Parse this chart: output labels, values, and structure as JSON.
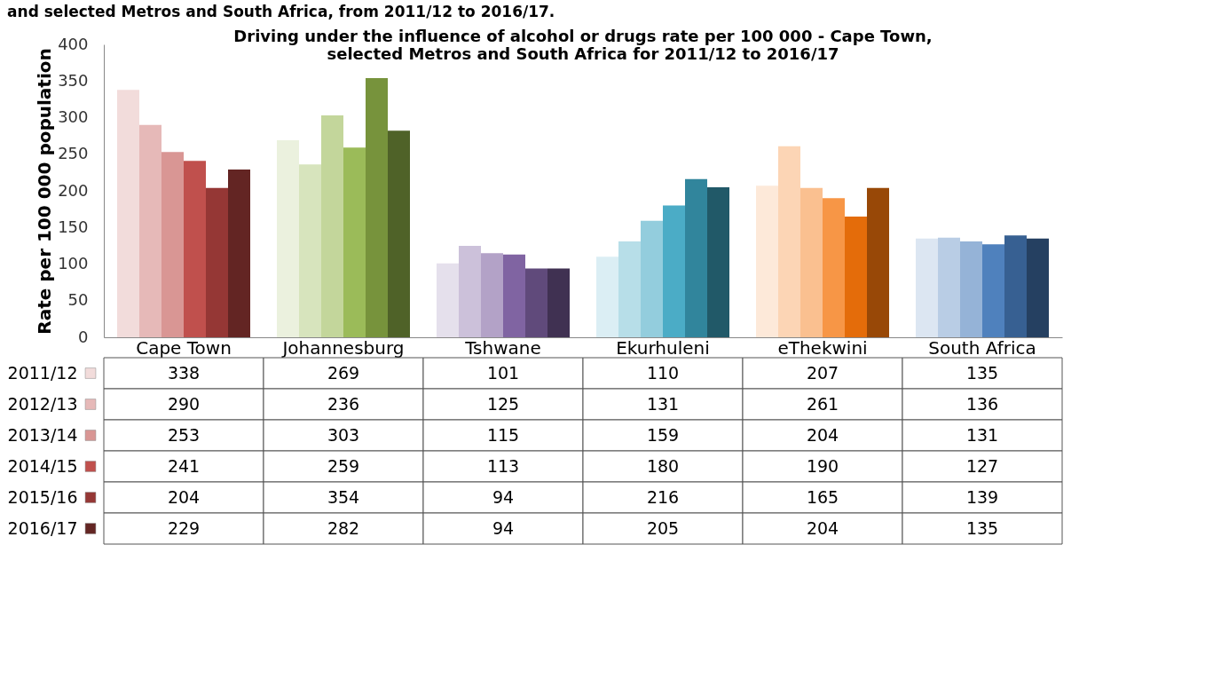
{
  "chart_data": {
    "type": "bar",
    "title": [
      "Driving under the influence of alcohol or drugs rate per 100 000 - Cape Town,",
      "selected Metros and South Africa for 2011/12 to 2016/17"
    ],
    "annotations": [
      "and selected Metros and South Africa, from 2011/12 to 2016/17."
    ],
    "ylabel": "Rate per 100 000 population",
    "categories": [
      "Cape Town",
      "Johannesburg",
      "Tshwane",
      "Ekurhuleni",
      "eThekwini",
      "South Africa"
    ],
    "series": [
      {
        "name": "2011/12",
        "values": [
          338,
          269,
          101,
          110,
          207,
          135
        ],
        "colors": [
          "#f2dcdb",
          "#ebf1de",
          "#e5e0ec",
          "#dbeef4",
          "#fde9d9",
          "#dce6f2"
        ]
      },
      {
        "name": "2012/13",
        "values": [
          290,
          236,
          125,
          131,
          261,
          136
        ],
        "colors": [
          "#e6b9b8",
          "#d7e4bd",
          "#ccc1da",
          "#b7dee8",
          "#fcd5b5",
          "#b9cde5"
        ]
      },
      {
        "name": "2013/14",
        "values": [
          253,
          303,
          115,
          159,
          204,
          131
        ],
        "colors": [
          "#d99694",
          "#c3d69b",
          "#b3a2c7",
          "#93cddd",
          "#fac090",
          "#95b3d7"
        ]
      },
      {
        "name": "2014/15",
        "values": [
          241,
          259,
          113,
          180,
          190,
          127
        ],
        "colors": [
          "#c0504d",
          "#9bbb59",
          "#8064a2",
          "#4bacc6",
          "#f79646",
          "#4f81bd"
        ]
      },
      {
        "name": "2015/16",
        "values": [
          204,
          354,
          94,
          216,
          165,
          139
        ],
        "colors": [
          "#953735",
          "#77933c",
          "#604a7b",
          "#31859c",
          "#e46c0a",
          "#376092"
        ]
      },
      {
        "name": "2016/17",
        "values": [
          229,
          282,
          94,
          205,
          204,
          135
        ],
        "colors": [
          "#632523",
          "#4f6228",
          "#403152",
          "#215968",
          "#984807",
          "#254061"
        ]
      }
    ],
    "ylim": [
      0,
      400
    ],
    "yticks": [
      0,
      50,
      100,
      150,
      200,
      250,
      300,
      350,
      400
    ],
    "grid": false,
    "legend": "bottom left",
    "data_labels": true
  }
}
